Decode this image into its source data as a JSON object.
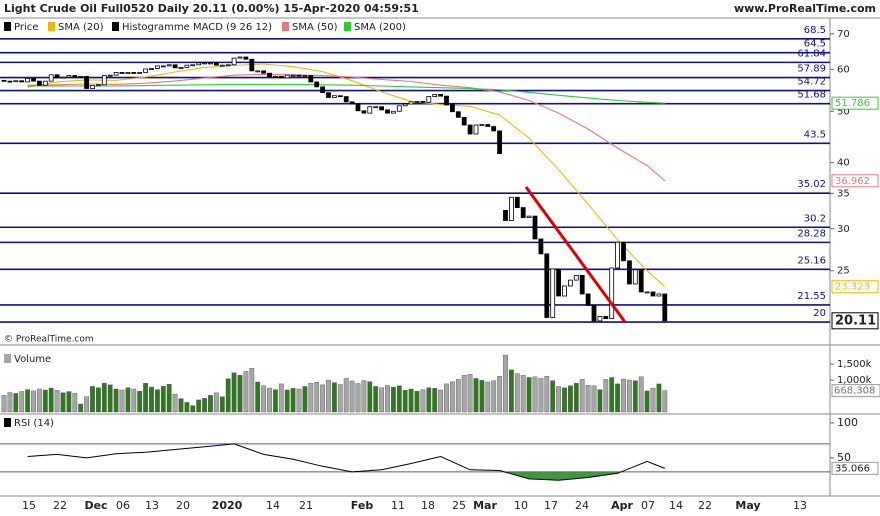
{
  "header": {
    "title": "Light Crude Oil Full0520 Daily 20.11 (0.00%) 15-Apr-2020 04:59:51",
    "site": "www.ProRealTime.com",
    "copyright": "© ProRealTime.com"
  },
  "chart_data": [
    {
      "type": "candlestick",
      "price_name": "Price",
      "price_color": "#000000",
      "macd_name": "Histogramme MACD (9 26 12)",
      "macd_color": "#000000",
      "log_scale": true,
      "ylim": [
        18.5,
        75
      ],
      "yticks": [
        25,
        30,
        35,
        40,
        50,
        60,
        70
      ],
      "up_color": "#ffffff",
      "down_color": "#000000",
      "open": [
        57.2,
        57.0,
        56.9,
        57.1,
        56.8,
        57.7,
        57.0,
        56.0,
        57.0,
        58.6,
        57.8,
        58.0,
        58.4,
        58.1,
        58.2,
        55.2,
        55.9,
        56.1,
        58.4,
        58.5,
        59.2,
        59.0,
        59.2,
        59.0,
        59.2,
        60.1,
        60.2,
        60.9,
        60.9,
        61.2,
        60.4,
        60.5,
        61.1,
        61.2,
        61.7,
        61.7,
        61.7,
        61.1,
        61.1,
        61.2,
        63.0,
        63.3,
        62.7,
        59.6,
        59.6,
        59.0,
        58.1,
        58.2,
        57.8,
        58.5,
        58.5,
        58.4,
        58.4,
        56.8,
        55.6,
        54.2,
        53.1,
        53.5,
        53.3,
        52.1,
        51.6,
        50.1,
        49.6,
        51.0,
        51.0,
        50.3,
        49.6,
        50.0,
        51.2,
        51.6,
        52.1,
        52.2,
        52.0,
        53.3,
        53.8,
        53.4,
        51.4,
        49.9,
        48.7,
        47.1,
        45.3,
        47.1,
        47.2,
        46.8,
        45.9,
        32.5,
        31.1,
        34.4,
        32.9,
        31.5,
        31.7,
        28.7,
        26.9,
        20.4,
        25.2,
        22.4,
        23.4,
        24.0,
        24.5,
        22.6,
        21.5,
        20.1,
        20.5,
        20.3,
        25.3,
        28.3,
        26.1,
        23.6,
        25.1,
        22.8,
        22.8,
        22.4,
        22.6
      ],
      "close": [
        57.0,
        56.9,
        57.1,
        56.8,
        57.7,
        57.0,
        56.0,
        57.0,
        58.6,
        57.8,
        58.0,
        58.4,
        58.1,
        58.2,
        55.2,
        55.9,
        56.1,
        58.4,
        58.5,
        59.2,
        59.0,
        59.2,
        59.0,
        59.2,
        60.1,
        60.2,
        60.9,
        60.9,
        61.2,
        60.4,
        60.5,
        61.1,
        61.2,
        61.7,
        61.7,
        61.7,
        61.1,
        61.1,
        61.2,
        63.0,
        63.3,
        62.7,
        59.6,
        59.6,
        59.0,
        58.1,
        58.2,
        57.8,
        58.5,
        58.5,
        58.4,
        58.4,
        56.8,
        55.6,
        54.2,
        53.1,
        53.5,
        53.3,
        52.1,
        51.6,
        50.1,
        49.6,
        51.0,
        51.0,
        50.3,
        49.6,
        50.0,
        51.2,
        51.6,
        52.1,
        52.2,
        52.0,
        53.3,
        53.8,
        53.4,
        51.4,
        49.9,
        48.7,
        47.1,
        45.3,
        47.1,
        47.2,
        46.8,
        45.9,
        41.6,
        31.1,
        34.4,
        32.9,
        31.5,
        31.7,
        28.7,
        26.9,
        20.4,
        25.2,
        22.4,
        23.4,
        24.0,
        24.5,
        22.6,
        21.5,
        20.1,
        20.5,
        20.3,
        25.3,
        28.3,
        26.1,
        23.6,
        25.1,
        22.8,
        22.8,
        22.4,
        22.6,
        20.11
      ],
      "levels": [
        68.5,
        64.5,
        61.84,
        57.89,
        54.72,
        51.68,
        43.5,
        35.02,
        30.2,
        28.28,
        25.16,
        21.55,
        20
      ],
      "level_color": "#10108a",
      "series": [
        {
          "name": "SMA (20)",
          "color": "#f2b705",
          "values": [
            55.5,
            56.8,
            57.3,
            57.2,
            58.0,
            59.3,
            60.5,
            61.0,
            61.4,
            60.7,
            59.4,
            57.1,
            54.4,
            52.2,
            51.5,
            51.1,
            49.2,
            44.5,
            38.8,
            33.4,
            28.6,
            25.0,
            23.323
          ]
        },
        {
          "name": "SMA (50)",
          "color": "#e07a7a",
          "values": [
            56.0,
            56.1,
            56.3,
            56.2,
            56.5,
            57.0,
            57.8,
            58.5,
            58.7,
            58.6,
            58.4,
            58.0,
            57.4,
            56.9,
            56.0,
            55.4,
            54.4,
            52.4,
            49.6,
            46.3,
            42.6,
            39.5,
            36.962
          ]
        },
        {
          "name": "SMA (200)",
          "color": "#2ecc2e",
          "values": [
            55.8,
            55.8,
            55.8,
            55.8,
            55.9,
            56.0,
            56.1,
            56.2,
            56.2,
            56.2,
            56.1,
            56.0,
            55.8,
            55.6,
            55.4,
            55.2,
            54.9,
            54.3,
            53.6,
            53.0,
            52.4,
            52.0,
            51.786
          ]
        }
      ]
    },
    {
      "type": "bar",
      "title": "Volume",
      "ylim": [
        0,
        1940000
      ],
      "yticks": [
        {
          "value": 1000000,
          "label": "1,000k"
        },
        {
          "value": 1500000,
          "label": "1,500k"
        }
      ],
      "up_color": "#2f7a1f",
      "down_color": "#a6a6a6",
      "values": [
        520000,
        610000,
        580000,
        640000,
        700000,
        660000,
        720000,
        690000,
        750000,
        680000,
        600000,
        640000,
        590000,
        250000,
        480000,
        800000,
        760000,
        900000,
        850000,
        720000,
        690000,
        760000,
        720000,
        650000,
        900000,
        780000,
        700000,
        810000,
        870000,
        560000,
        420000,
        300000,
        200000,
        380000,
        430000,
        520000,
        600000,
        480000,
        1040000,
        1230000,
        1150000,
        1270000,
        1370000,
        940000,
        820000,
        750000,
        700000,
        880000,
        690000,
        740000,
        720000,
        800000,
        900000,
        930000,
        850000,
        1000000,
        920000,
        860000,
        1050000,
        970000,
        890000,
        980000,
        950000,
        800000,
        760000,
        830000,
        780000,
        820000,
        680000,
        720000,
        650000,
        700000,
        760000,
        740000,
        690000,
        880000,
        950000,
        1020000,
        1150000,
        1180000,
        1050000,
        990000,
        940000,
        980000,
        1120000,
        1780000,
        1320000,
        1200000,
        1150000,
        1080000,
        1100000,
        1050000,
        1120000,
        980000,
        800000,
        760000,
        820000,
        900000,
        1020000,
        840000,
        820000,
        700000,
        1020000,
        1080000,
        880000,
        1030000,
        1000000,
        980000,
        1100000,
        660000,
        750000,
        880000,
        668308
      ],
      "value_labels": [
        null,
        null,
        null,
        null,
        null,
        null,
        null,
        null,
        null,
        null,
        null,
        null,
        null,
        null,
        null,
        null,
        null,
        null,
        null,
        null,
        null,
        null,
        null,
        null,
        null,
        null,
        null,
        null,
        null,
        null,
        null,
        null,
        null,
        null,
        null,
        null,
        null,
        null,
        null,
        null,
        null,
        null,
        null,
        null,
        null,
        null,
        null,
        null,
        null,
        null,
        null,
        null,
        null,
        null,
        null,
        null,
        null,
        null,
        null,
        null,
        null,
        null,
        null,
        null,
        null,
        null,
        null,
        null,
        null,
        null,
        null,
        null,
        null,
        null,
        null,
        null,
        null,
        null,
        null,
        null,
        null,
        null,
        null,
        null,
        null,
        null,
        null,
        null,
        null,
        null,
        null,
        null,
        null,
        null,
        null,
        null,
        null,
        null,
        null,
        null,
        null,
        null,
        null,
        null,
        null,
        null,
        null,
        null,
        null,
        null,
        null,
        null,
        "668,308"
      ]
    },
    {
      "type": "line",
      "title": "RSI (14)",
      "ylim": [
        -3,
        107
      ],
      "yticks": [
        50,
        100
      ],
      "levels": [
        30,
        70
      ],
      "level_color": "#5b4fb5",
      "color": "#000000",
      "fill_color": "#2e8b2e",
      "values": [
        52,
        55,
        50,
        56,
        58,
        62,
        66,
        70,
        55,
        48,
        38,
        30,
        33,
        42,
        52,
        33,
        32,
        20,
        18,
        22,
        28,
        45,
        35.066
      ]
    }
  ],
  "x_axis": {
    "labels": [
      "15",
      "22",
      "Dec",
      "06",
      "13",
      "20",
      "2020",
      "14",
      "21",
      "Feb",
      "11",
      "18",
      "25",
      "Mar",
      "10",
      "17",
      "24",
      "Apr",
      "07",
      "14",
      "22",
      "May",
      "13"
    ]
  }
}
